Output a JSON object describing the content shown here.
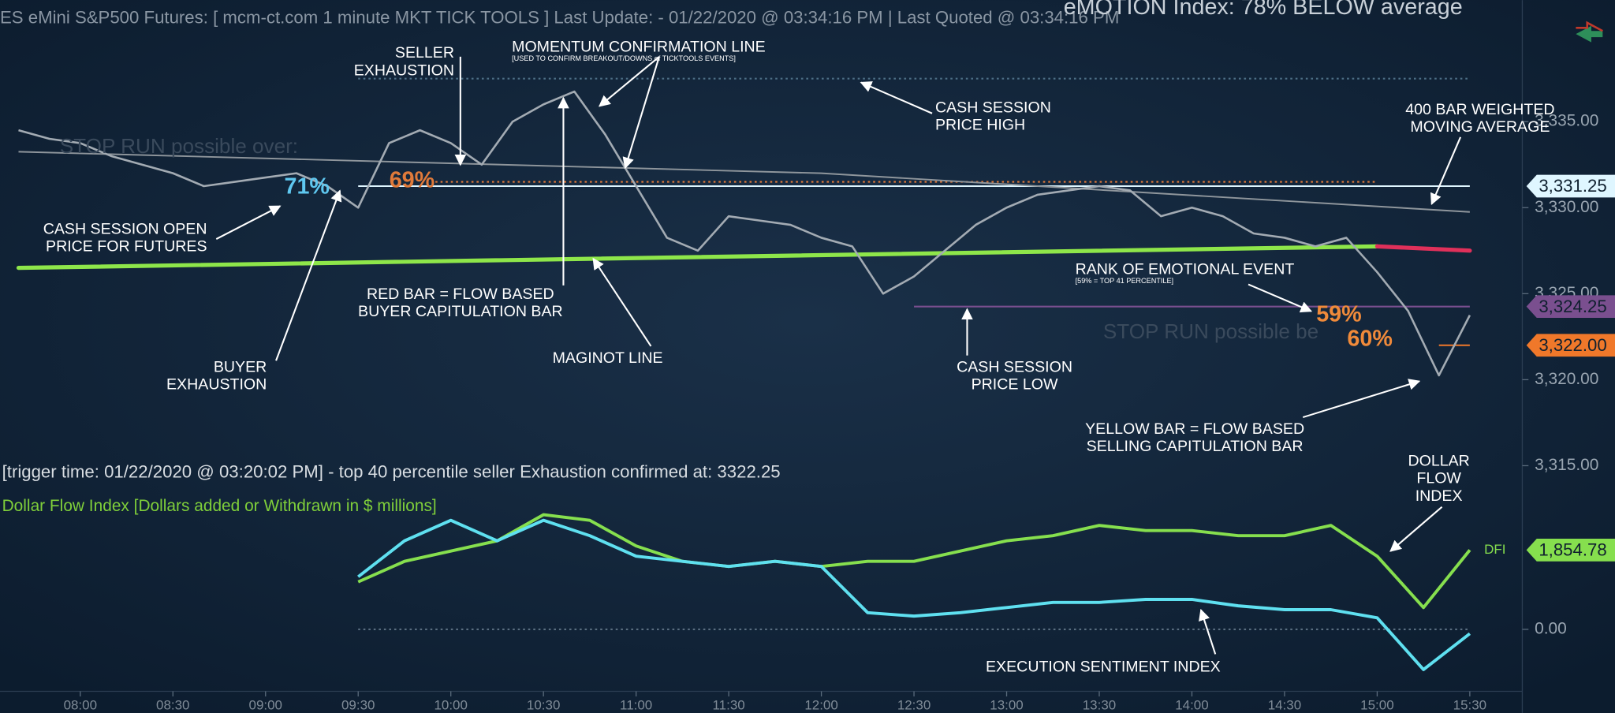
{
  "header": {
    "title": "ES eMini S&P500 Futures: [ mcm-ct.com 1 minute MKT TICK TOOLS ] Last Update:  - 01/22/2020 @ 03:34:16 PM | Last Quoted @ 03:34:16 PM",
    "emotion": "eMOTION Index: 78% BELOW average"
  },
  "chart_data": [
    {
      "type": "line",
      "subtitle": "[trigger time: 01/22/2020 @ 03:20:02 PM]    - top 40 percentile seller  Exhaustion  confirmed at: 3322.25",
      "x": [
        "07:40",
        "07:50",
        "08:00",
        "08:10",
        "08:20",
        "08:30",
        "08:40",
        "08:50",
        "09:00",
        "09:10",
        "09:20",
        "09:30",
        "09:40",
        "09:50",
        "10:00",
        "10:10",
        "10:20",
        "10:30",
        "10:40",
        "10:50",
        "11:00",
        "11:10",
        "11:20",
        "11:30",
        "11:40",
        "11:50",
        "12:00",
        "12:10",
        "12:20",
        "12:30",
        "12:40",
        "12:50",
        "13:00",
        "13:10",
        "13:20",
        "13:30",
        "13:40",
        "13:50",
        "14:00",
        "14:10",
        "14:20",
        "14:30",
        "14:40",
        "14:50",
        "15:00",
        "15:10",
        "15:20",
        "15:30"
      ],
      "series": [
        {
          "color": "#a3abb3",
          "values": [
            3334.5,
            3334.0,
            3333.75,
            3333.0,
            3332.5,
            3332.0,
            3331.25,
            3331.5,
            3331.75,
            3332.0,
            3331.25,
            3330.0,
            3333.75,
            3334.5,
            3333.75,
            3332.5,
            3335.0,
            3336.0,
            3336.75,
            3334.25,
            3331.25,
            3328.25,
            3327.5,
            3329.5,
            3329.25,
            3329.0,
            3328.25,
            3327.75,
            3325.0,
            3326.0,
            3327.5,
            3329.0,
            3330.0,
            3330.75,
            3331.0,
            3331.25,
            3331.0,
            3329.5,
            3330.0,
            3329.5,
            3328.5,
            3328.25,
            3327.75,
            3328.25,
            3326.25,
            3324.0,
            3320.25,
            3323.75
          ]
        }
      ],
      "maginot": {
        "x": [
          "07:40",
          "15:00",
          "15:30"
        ],
        "values": [
          3326.5,
          3327.75,
          3327.5
        ],
        "colors": [
          "#8ee64a",
          "#e0305a"
        ]
      },
      "wma": {
        "x": [
          "07:40",
          "12:00",
          "15:30"
        ],
        "values": [
          3333.25,
          3332.0,
          3329.75
        ],
        "color": "#8f969c"
      },
      "levels": [
        {
          "value": 3337.5,
          "x": [
            "09:30",
            "15:30"
          ],
          "color": "#4d6f86"
        },
        {
          "value": 3331.5,
          "x": [
            "09:55",
            "15:00"
          ],
          "color": "#e07a3a"
        },
        {
          "value": 3331.25,
          "x": [
            "09:30",
            "15:30"
          ],
          "color": "#dff6ff",
          "label": "3,331.25"
        },
        {
          "value": 3324.25,
          "x": [
            "12:30",
            "15:30"
          ],
          "color": "#7a4f8f",
          "label": "3,324.25"
        },
        {
          "value": 3322.0,
          "x": [
            "15:20",
            "15:30"
          ],
          "color": "#f0782a",
          "label": "3,322.00"
        }
      ],
      "event_labels": [
        {
          "text": "71%",
          "color": "#5fc8f0"
        },
        {
          "text": "69%",
          "color": "#e07a3a"
        },
        {
          "text": "59%",
          "color": "#f08a3a"
        },
        {
          "text": "60%",
          "color": "#f08a3a"
        }
      ],
      "faded_notes": [
        "STOP RUN possible over:",
        "STOP RUN possible be"
      ],
      "xlim": [
        "07:34",
        "15:46"
      ],
      "xticks": [
        "08:00",
        "08:30",
        "09:00",
        "09:30",
        "10:00",
        "10:30",
        "11:00",
        "11:30",
        "12:00",
        "12:30",
        "13:00",
        "13:30",
        "14:00",
        "14:30",
        "15:00",
        "15:30"
      ],
      "ylim": [
        3314,
        3341
      ],
      "yticks": [
        {
          "value": 3335,
          "label": "3,335.00"
        },
        {
          "value": 3330,
          "label": "3,330.00"
        },
        {
          "value": 3325,
          "label": "3,325.00"
        },
        {
          "value": 3320,
          "label": "3,320.00"
        },
        {
          "value": 3315,
          "label": "3,315.00"
        }
      ]
    },
    {
      "type": "line",
      "title": "Dollar Flow Index [Dollars added or Withdrawn in $ millions]",
      "x": [
        "09:30",
        "09:45",
        "10:00",
        "10:15",
        "10:30",
        "10:45",
        "11:00",
        "11:15",
        "11:30",
        "11:45",
        "12:00",
        "12:15",
        "12:30",
        "12:45",
        "13:00",
        "13:15",
        "13:30",
        "13:45",
        "14:00",
        "14:15",
        "14:30",
        "14:45",
        "15:00",
        "15:15",
        "15:30"
      ],
      "series": [
        {
          "name": "DFI",
          "color": "#86df4e",
          "values": [
            1110,
            1590,
            1830,
            2070,
            2680,
            2550,
            1950,
            1590,
            1470,
            1590,
            1470,
            1590,
            1590,
            1830,
            2070,
            2190,
            2430,
            2310,
            2310,
            2190,
            2190,
            2430,
            1710,
            510,
            1854.78
          ]
        },
        {
          "color": "#5fe0f0",
          "values": [
            1230,
            2070,
            2550,
            2070,
            2550,
            2190,
            1710,
            1590,
            1470,
            1590,
            1470,
            390,
            310,
            390,
            510,
            630,
            630,
            700,
            700,
            550,
            460,
            460,
            270,
            -940,
            -100
          ]
        }
      ],
      "levels": [
        {
          "value": 1854.78,
          "x": [
            "15:30",
            "15:30"
          ],
          "color": "#86df4e",
          "label": "1,854.78"
        },
        {
          "value": 0,
          "x": [
            "09:30",
            "15:30"
          ],
          "color": "#5a6e80"
        }
      ],
      "xlim": [
        "07:34",
        "15:46"
      ],
      "ylim": [
        -1400,
        3200
      ],
      "yticks": [
        {
          "value": 0,
          "label": "0.00"
        }
      ]
    }
  ],
  "annotations": [
    {
      "lines": [
        "SELLER",
        "EXHAUSTION"
      ]
    },
    {
      "lines": [
        "MOMENTUM CONFIRMATION LINE"
      ],
      "note": "[USED TO CONFIRM BREAKOUT/DOWNS of TICKTOOLS EVENTS]"
    },
    {
      "lines": [
        "CASH SESSION",
        "PRICE HIGH"
      ]
    },
    {
      "lines": [
        "400 BAR WEIGHTED",
        "MOVING AVERAGE"
      ]
    },
    {
      "lines": [
        "CASH SESSION OPEN",
        "PRICE FOR FUTURES"
      ]
    },
    {
      "lines": [
        "RED BAR = FLOW BASED",
        "BUYER CAPITULATION BAR"
      ]
    },
    {
      "lines": [
        "MAGINOT LINE"
      ]
    },
    {
      "lines": [
        "BUYER",
        "EXHAUSTION"
      ]
    },
    {
      "lines": [
        "CASH SESSION",
        "PRICE LOW"
      ]
    },
    {
      "lines": [
        "RANK OF EMOTIONAL EVENT"
      ],
      "note": "[59% = TOP 41 PERCENTILE]"
    },
    {
      "lines": [
        "YELLOW BAR = FLOW BASED",
        "SELLING CAPITULATION BAR"
      ]
    },
    {
      "lines": [
        "DOLLAR",
        "FLOW",
        "INDEX"
      ]
    },
    {
      "lines": [
        "EXECUTION SENTIMENT INDEX"
      ]
    }
  ]
}
